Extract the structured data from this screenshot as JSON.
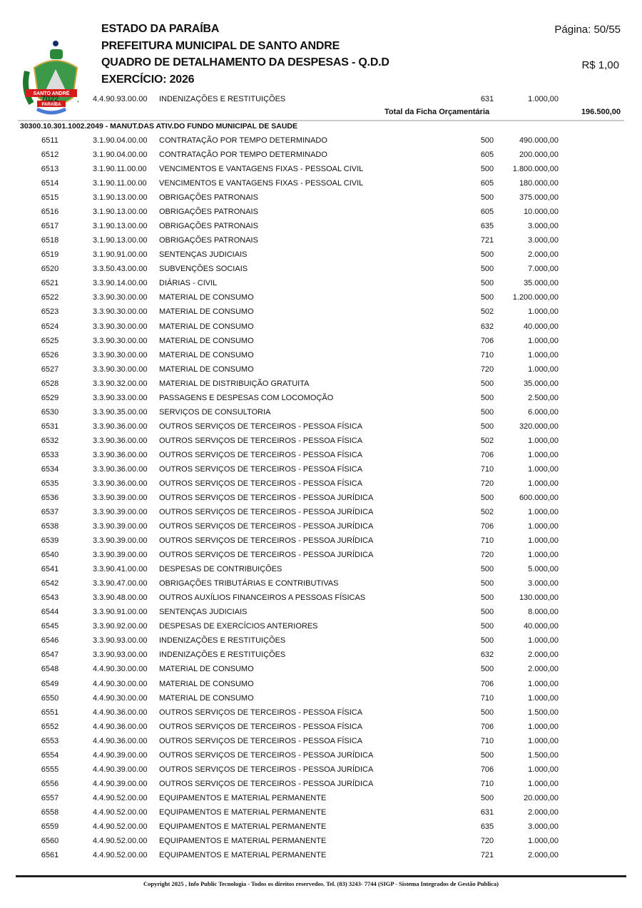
{
  "header": {
    "line1": "ESTADO DA PARAÍBA",
    "line2": "PREFEITURA MUNICIPAL DE SANTO ANDRE",
    "line3": "QUADRO DE DETALHAMENTO DA DESPESAS - Q.D.D",
    "line4": "EXERCÍCIO: 2026",
    "page": "Página: 50/55",
    "unit": "R$ 1,00",
    "logo_text": [
      "SANTO ANDRÉ",
      "PARAÍBA"
    ]
  },
  "prev_row": [
    "7022",
    "4.4.90.93.00.00",
    "INDENIZAÇÕES E RESTITUIÇÕES",
    "631",
    "1.000,00"
  ],
  "prev_total": {
    "label": "Total da Ficha Orçamentária",
    "value": "196.500,00"
  },
  "section": "30300.10.301.1002.2049 - MANUT.DAS ATIV.DO FUNDO MUNICIPAL DE SAUDE",
  "rows": [
    [
      "6511",
      "3.1.90.04.00.00",
      "CONTRATAÇÃO POR TEMPO DETERMINADO",
      "500",
      "490.000,00"
    ],
    [
      "6512",
      "3.1.90.04.00.00",
      "CONTRATAÇÃO POR TEMPO DETERMINADO",
      "605",
      "200.000,00"
    ],
    [
      "6513",
      "3.1.90.11.00.00",
      "VENCIMENTOS E VANTAGENS FIXAS - PESSOAL CIVIL",
      "500",
      "1.800.000,00"
    ],
    [
      "6514",
      "3.1.90.11.00.00",
      "VENCIMENTOS E VANTAGENS FIXAS - PESSOAL CIVIL",
      "605",
      "180.000,00"
    ],
    [
      "6515",
      "3.1.90.13.00.00",
      "OBRIGAÇÕES PATRONAIS",
      "500",
      "375.000,00"
    ],
    [
      "6516",
      "3.1.90.13.00.00",
      "OBRIGAÇÕES PATRONAIS",
      "605",
      "10.000,00"
    ],
    [
      "6517",
      "3.1.90.13.00.00",
      "OBRIGAÇÕES PATRONAIS",
      "635",
      "3.000,00"
    ],
    [
      "6518",
      "3.1.90.13.00.00",
      "OBRIGAÇÕES PATRONAIS",
      "721",
      "3.000,00"
    ],
    [
      "6519",
      "3.1.90.91.00.00",
      "SENTENÇAS JUDICIAIS",
      "500",
      "2.000,00"
    ],
    [
      "6520",
      "3.3.50.43.00.00",
      "SUBVENÇÕES SOCIAIS",
      "500",
      "7.000,00"
    ],
    [
      "6521",
      "3.3.90.14.00.00",
      "DIÁRIAS - CIVIL",
      "500",
      "35.000,00"
    ],
    [
      "6522",
      "3.3.90.30.00.00",
      "MATERIAL DE CONSUMO",
      "500",
      "1.200.000,00"
    ],
    [
      "6523",
      "3.3.90.30.00.00",
      "MATERIAL DE CONSUMO",
      "502",
      "1.000,00"
    ],
    [
      "6524",
      "3.3.90.30.00.00",
      "MATERIAL DE CONSUMO",
      "632",
      "40.000,00"
    ],
    [
      "6525",
      "3.3.90.30.00.00",
      "MATERIAL DE CONSUMO",
      "706",
      "1.000,00"
    ],
    [
      "6526",
      "3.3.90.30.00.00",
      "MATERIAL DE CONSUMO",
      "710",
      "1.000,00"
    ],
    [
      "6527",
      "3.3.90.30.00.00",
      "MATERIAL DE CONSUMO",
      "720",
      "1.000,00"
    ],
    [
      "6528",
      "3.3.90.32.00.00",
      "MATERIAL DE DISTRIBUIÇÃO GRATUITA",
      "500",
      "35.000,00"
    ],
    [
      "6529",
      "3.3.90.33.00.00",
      "PASSAGENS E DESPESAS COM LOCOMOÇÃO",
      "500",
      "2.500,00"
    ],
    [
      "6530",
      "3.3.90.35.00.00",
      "SERVIÇOS DE CONSULTORIA",
      "500",
      "6.000,00"
    ],
    [
      "6531",
      "3.3.90.36.00.00",
      "OUTROS SERVIÇOS DE TERCEIROS - PESSOA FÍSICA",
      "500",
      "320.000,00"
    ],
    [
      "6532",
      "3.3.90.36.00.00",
      "OUTROS SERVIÇOS DE TERCEIROS - PESSOA FÍSICA",
      "502",
      "1.000,00"
    ],
    [
      "6533",
      "3.3.90.36.00.00",
      "OUTROS SERVIÇOS DE TERCEIROS - PESSOA FÍSICA",
      "706",
      "1.000,00"
    ],
    [
      "6534",
      "3.3.90.36.00.00",
      "OUTROS SERVIÇOS DE TERCEIROS - PESSOA FÍSICA",
      "710",
      "1.000,00"
    ],
    [
      "6535",
      "3.3.90.36.00.00",
      "OUTROS SERVIÇOS DE TERCEIROS - PESSOA FÍSICA",
      "720",
      "1.000,00"
    ],
    [
      "6536",
      "3.3.90.39.00.00",
      "OUTROS SERVIÇOS DE TERCEIROS - PESSOA JURÍDICA",
      "500",
      "600.000,00"
    ],
    [
      "6537",
      "3.3.90.39.00.00",
      "OUTROS SERVIÇOS DE TERCEIROS - PESSOA JURÍDICA",
      "502",
      "1.000,00"
    ],
    [
      "6538",
      "3.3.90.39.00.00",
      "OUTROS SERVIÇOS DE TERCEIROS - PESSOA JURÍDICA",
      "706",
      "1.000,00"
    ],
    [
      "6539",
      "3.3.90.39.00.00",
      "OUTROS SERVIÇOS DE TERCEIROS - PESSOA JURÍDICA",
      "710",
      "1.000,00"
    ],
    [
      "6540",
      "3.3.90.39.00.00",
      "OUTROS SERVIÇOS DE TERCEIROS - PESSOA JURÍDICA",
      "720",
      "1.000,00"
    ],
    [
      "6541",
      "3.3.90.41.00.00",
      "DESPESAS DE CONTRIBUIÇÕES",
      "500",
      "5.000,00"
    ],
    [
      "6542",
      "3.3.90.47.00.00",
      "OBRIGAÇÕES TRIBUTÁRIAS E CONTRIBUTIVAS",
      "500",
      "3.000,00"
    ],
    [
      "6543",
      "3.3.90.48.00.00",
      "OUTROS AUXÍLIOS FINANCEIROS A PESSOAS FÍSICAS",
      "500",
      "130.000,00"
    ],
    [
      "6544",
      "3.3.90.91.00.00",
      "SENTENÇAS JUDICIAIS",
      "500",
      "8.000,00"
    ],
    [
      "6545",
      "3.3.90.92.00.00",
      "DESPESAS DE EXERCÍCIOS ANTERIORES",
      "500",
      "40.000,00"
    ],
    [
      "6546",
      "3.3.90.93.00.00",
      "INDENIZAÇÕES E RESTITUIÇÕES",
      "500",
      "1.000,00"
    ],
    [
      "6547",
      "3.3.90.93.00.00",
      "INDENIZAÇÕES E RESTITUIÇÕES",
      "632",
      "2.000,00"
    ],
    [
      "6548",
      "4.4.90.30.00.00",
      "MATERIAL DE CONSUMO",
      "500",
      "2.000,00"
    ],
    [
      "6549",
      "4.4.90.30.00.00",
      "MATERIAL DE CONSUMO",
      "706",
      "1.000,00"
    ],
    [
      "6550",
      "4.4.90.30.00.00",
      "MATERIAL DE CONSUMO",
      "710",
      "1.000,00"
    ],
    [
      "6551",
      "4.4.90.36.00.00",
      "OUTROS SERVIÇOS DE TERCEIROS - PESSOA FÍSICA",
      "500",
      "1.500,00"
    ],
    [
      "6552",
      "4.4.90.36.00.00",
      "OUTROS SERVIÇOS DE TERCEIROS - PESSOA FÍSICA",
      "706",
      "1.000,00"
    ],
    [
      "6553",
      "4.4.90.36.00.00",
      "OUTROS SERVIÇOS DE TERCEIROS - PESSOA FÍSICA",
      "710",
      "1.000,00"
    ],
    [
      "6554",
      "4.4.90.39.00.00",
      "OUTROS SERVIÇOS DE TERCEIROS - PESSOA JURÍDICA",
      "500",
      "1.500,00"
    ],
    [
      "6555",
      "4.4.90.39.00.00",
      "OUTROS SERVIÇOS DE TERCEIROS - PESSOA JURÍDICA",
      "706",
      "1.000,00"
    ],
    [
      "6556",
      "4.4.90.39.00.00",
      "OUTROS SERVIÇOS DE TERCEIROS - PESSOA JURÍDICA",
      "710",
      "1.000,00"
    ],
    [
      "6557",
      "4.4.90.52.00.00",
      "EQUIPAMENTOS E MATERIAL PERMANENTE",
      "500",
      "20.000,00"
    ],
    [
      "6558",
      "4.4.90.52.00.00",
      "EQUIPAMENTOS E MATERIAL PERMANENTE",
      "631",
      "2.000,00"
    ],
    [
      "6559",
      "4.4.90.52.00.00",
      "EQUIPAMENTOS E MATERIAL PERMANENTE",
      "635",
      "3.000,00"
    ],
    [
      "6560",
      "4.4.90.52.00.00",
      "EQUIPAMENTOS E MATERIAL PERMANENTE",
      "720",
      "1.000,00"
    ],
    [
      "6561",
      "4.4.90.52.00.00",
      "EQUIPAMENTOS E MATERIAL PERMANENTE",
      "721",
      "2.000,00"
    ]
  ],
  "footer": "Copyright 2025 , Info Public Tecnologia - Todos os direitos reservedos. Tel. (83) 3243- 7744 (SIGP - Sistema Integrados de Gestão Publica)"
}
